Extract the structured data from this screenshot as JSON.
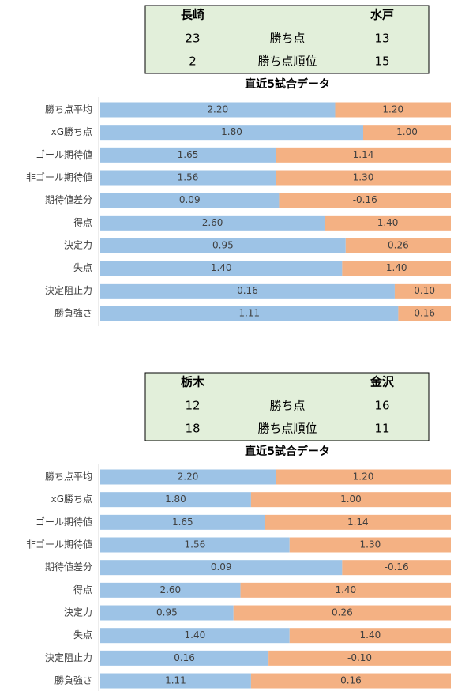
{
  "headers": [
    {
      "home": "長崎",
      "away": "水戸",
      "rows": [
        {
          "home": 23,
          "label": "勝ち点",
          "away": 13
        },
        {
          "home": 2,
          "label": "勝ち点順位",
          "away": 15
        }
      ]
    },
    {
      "home": "栃木",
      "away": "金沢",
      "rows": [
        {
          "home": 12,
          "label": "勝ち点",
          "away": 16
        },
        {
          "home": 18,
          "label": "勝ち点順位",
          "away": 11
        }
      ]
    }
  ],
  "chart_data": [
    {
      "type": "bar",
      "title": "直近5試合データ",
      "categories": [
        "勝ち点平均",
        "xG勝ち点",
        "ゴール期待値",
        "非ゴール期待値",
        "期待値差分",
        "得点",
        "決定力",
        "失点",
        "決定阻止力",
        "勝負強さ"
      ],
      "series": [
        {
          "color": "#9dc3e6",
          "values": [
            2.2,
            1.8,
            1.65,
            1.56,
            0.09,
            2.6,
            0.95,
            1.4,
            0.16,
            1.11
          ],
          "value_labels": [
            "2.20",
            "1.80",
            "1.65",
            "1.56",
            "0.09",
            "2.60",
            "0.95",
            "1.40",
            "0.16",
            "1.11"
          ]
        },
        {
          "color": "#f4b183",
          "values": [
            1.2,
            1.0,
            1.14,
            1.3,
            -0.16,
            1.4,
            0.26,
            1.4,
            -0.1,
            0.16
          ],
          "value_labels": [
            "1.20",
            "1.00",
            "1.14",
            "1.30",
            "-0.16",
            "1.40",
            "0.26",
            "1.40",
            "-0.10",
            "0.16"
          ]
        }
      ],
      "split": [
        67,
        75,
        50,
        50,
        51,
        64,
        70,
        69,
        84,
        85
      ]
    },
    {
      "type": "bar",
      "title": "直近5試合データ",
      "categories": [
        "勝ち点平均",
        "xG勝ち点",
        "ゴール期待値",
        "非ゴール期待値",
        "期待値差分",
        "得点",
        "決定力",
        "失点",
        "決定阻止力",
        "勝負強さ"
      ],
      "series": [
        {
          "color": "#9dc3e6",
          "values": [
            2.2,
            1.8,
            1.65,
            1.56,
            0.09,
            2.6,
            0.95,
            1.4,
            0.16,
            1.11
          ],
          "value_labels": [
            "2.20",
            "1.80",
            "1.65",
            "1.56",
            "0.09",
            "2.60",
            "0.95",
            "1.40",
            "0.16",
            "1.11"
          ]
        },
        {
          "color": "#f4b183",
          "values": [
            1.2,
            1.0,
            1.14,
            1.3,
            -0.16,
            1.4,
            0.26,
            1.4,
            -0.1,
            0.16
          ],
          "value_labels": [
            "1.20",
            "1.00",
            "1.14",
            "1.30",
            "-0.16",
            "1.40",
            "0.26",
            "1.40",
            "-0.10",
            "0.16"
          ]
        }
      ],
      "split": [
        50,
        43,
        47,
        54,
        69,
        40,
        38,
        54,
        48,
        43
      ]
    }
  ]
}
